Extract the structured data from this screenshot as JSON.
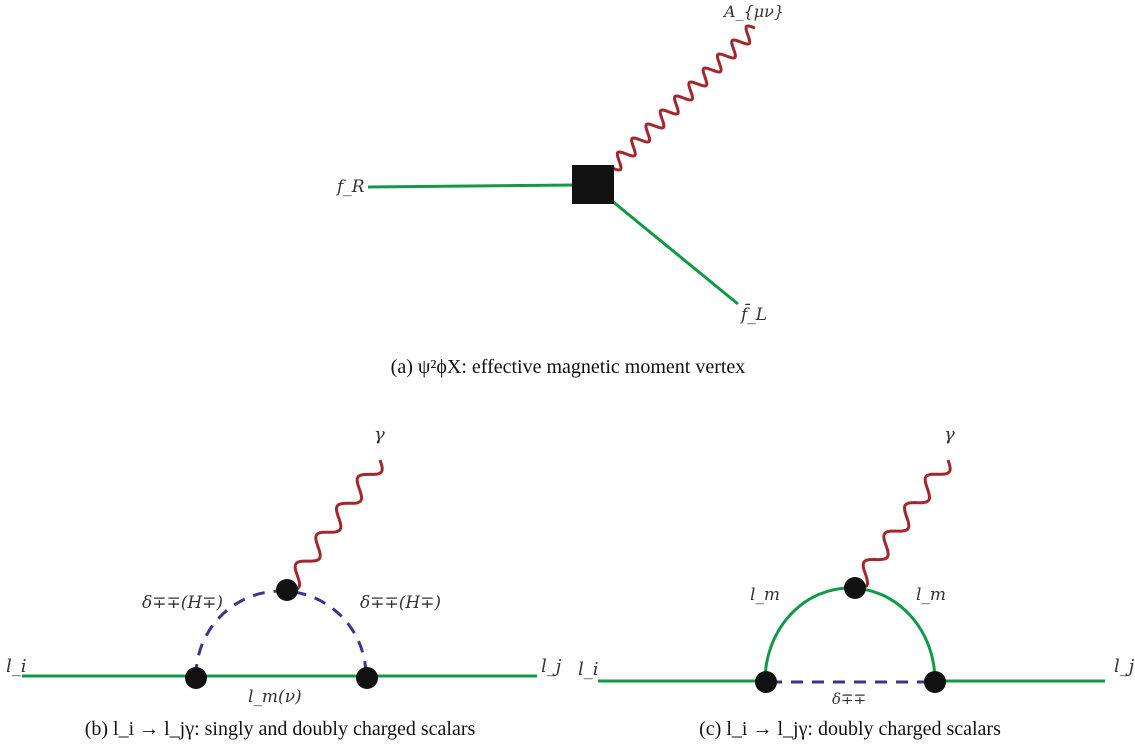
{
  "colors": {
    "fermion": "#109a48",
    "scalar": "#3b3592",
    "photon": "#a3282e",
    "vertex": "#111111"
  },
  "diagram_a": {
    "labels": {
      "fR": "f_R",
      "A": "A_{μν}",
      "fLbar": "f̄_L"
    },
    "caption": "(a) ψ²ϕX: effective magnetic moment vertex"
  },
  "diagram_b": {
    "labels": {
      "li": "l_i",
      "lj": "l_j",
      "gamma": "γ",
      "delta_left": "δ∓∓(H∓)",
      "delta_right": "δ∓∓(H∓)",
      "lm": "l_m(ν)"
    },
    "caption": "(b) l_i → l_jγ: singly and doubly charged scalars"
  },
  "diagram_c": {
    "labels": {
      "li": "l_i",
      "lj": "l_j",
      "gamma": "γ",
      "lm_left": "l_m",
      "lm_right": "l_m",
      "delta": "δ∓∓"
    },
    "caption": "(c) l_i → l_jγ: doubly charged scalars"
  }
}
